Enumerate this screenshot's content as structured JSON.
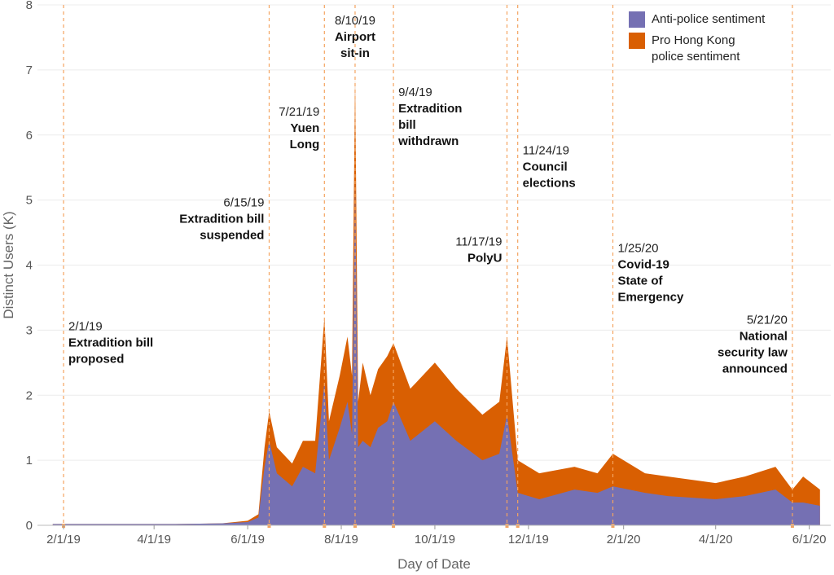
{
  "chart_data": {
    "type": "area",
    "title": "",
    "xlabel": "Day of Date",
    "ylabel": "Distinct Users (K)",
    "ylim": [
      0,
      8
    ],
    "yticks": [
      0,
      1,
      2,
      3,
      4,
      5,
      6,
      7,
      8
    ],
    "xrange": [
      "1/15/19",
      "6/15/20"
    ],
    "xticks": [
      {
        "date": "2/1/19",
        "label": "2/1/19"
      },
      {
        "date": "4/1/19",
        "label": "4/1/19"
      },
      {
        "date": "6/1/19",
        "label": "6/1/19"
      },
      {
        "date": "8/1/19",
        "label": "8/1/19"
      },
      {
        "date": "10/1/19",
        "label": "10/1/19"
      },
      {
        "date": "12/1/19",
        "label": "12/1/19"
      },
      {
        "date": "2/1/20",
        "label": "2/1/20"
      },
      {
        "date": "4/1/20",
        "label": "4/1/20"
      },
      {
        "date": "6/1/20",
        "label": "6/1/20"
      }
    ],
    "stacked": true,
    "series": [
      {
        "name": "Anti-police sentiment",
        "color": "#7570b3",
        "points": [
          [
            "1/25/19",
            0.02
          ],
          [
            "2/15/19",
            0.02
          ],
          [
            "3/15/19",
            0.02
          ],
          [
            "4/15/19",
            0.02
          ],
          [
            "5/15/19",
            0.03
          ],
          [
            "6/1/19",
            0.05
          ],
          [
            "6/8/19",
            0.12
          ],
          [
            "6/12/19",
            0.9
          ],
          [
            "6/15/19",
            1.3
          ],
          [
            "6/20/19",
            0.8
          ],
          [
            "6/30/19",
            0.6
          ],
          [
            "7/7/19",
            0.9
          ],
          [
            "7/15/19",
            0.8
          ],
          [
            "7/21/19",
            2.2
          ],
          [
            "7/24/19",
            1.0
          ],
          [
            "7/31/19",
            1.5
          ],
          [
            "8/5/19",
            1.9
          ],
          [
            "8/8/19",
            1.4
          ],
          [
            "8/10/19",
            5.3
          ],
          [
            "8/12/19",
            1.2
          ],
          [
            "8/15/19",
            1.3
          ],
          [
            "8/20/19",
            1.2
          ],
          [
            "8/25/19",
            1.5
          ],
          [
            "8/31/19",
            1.6
          ],
          [
            "9/4/19",
            1.9
          ],
          [
            "9/15/19",
            1.3
          ],
          [
            "10/1/19",
            1.6
          ],
          [
            "10/15/19",
            1.3
          ],
          [
            "11/1/19",
            1.0
          ],
          [
            "11/12/19",
            1.1
          ],
          [
            "11/17/19",
            1.7
          ],
          [
            "11/24/19",
            0.5
          ],
          [
            "12/8/19",
            0.4
          ],
          [
            "12/31/19",
            0.55
          ],
          [
            "1/15/20",
            0.5
          ],
          [
            "1/25/20",
            0.6
          ],
          [
            "2/15/20",
            0.5
          ],
          [
            "3/1/20",
            0.45
          ],
          [
            "4/1/20",
            0.4
          ],
          [
            "4/20/20",
            0.45
          ],
          [
            "5/10/20",
            0.55
          ],
          [
            "5/21/20",
            0.35
          ],
          [
            "5/28/20",
            0.35
          ],
          [
            "6/8/20",
            0.3
          ]
        ]
      },
      {
        "name": "Pro Hong Kong police sentiment",
        "label_lines": [
          "Pro Hong Kong",
          "police sentiment"
        ],
        "color": "#d95f02",
        "points": [
          [
            "1/25/19",
            0.0
          ],
          [
            "2/15/19",
            0.0
          ],
          [
            "3/15/19",
            0.0
          ],
          [
            "4/15/19",
            0.0
          ],
          [
            "5/15/19",
            0.0
          ],
          [
            "6/1/19",
            0.02
          ],
          [
            "6/8/19",
            0.05
          ],
          [
            "6/12/19",
            0.3
          ],
          [
            "6/15/19",
            0.45
          ],
          [
            "6/20/19",
            0.4
          ],
          [
            "6/30/19",
            0.35
          ],
          [
            "7/7/19",
            0.4
          ],
          [
            "7/15/19",
            0.5
          ],
          [
            "7/21/19",
            1.0
          ],
          [
            "7/24/19",
            0.6
          ],
          [
            "7/31/19",
            0.8
          ],
          [
            "8/5/19",
            1.0
          ],
          [
            "8/8/19",
            0.9
          ],
          [
            "8/10/19",
            1.6
          ],
          [
            "8/12/19",
            0.7
          ],
          [
            "8/15/19",
            1.2
          ],
          [
            "8/20/19",
            0.8
          ],
          [
            "8/25/19",
            0.9
          ],
          [
            "8/31/19",
            1.0
          ],
          [
            "9/4/19",
            0.9
          ],
          [
            "9/15/19",
            0.8
          ],
          [
            "10/1/19",
            0.9
          ],
          [
            "10/15/19",
            0.8
          ],
          [
            "11/1/19",
            0.7
          ],
          [
            "11/12/19",
            0.8
          ],
          [
            "11/17/19",
            1.2
          ],
          [
            "11/24/19",
            0.5
          ],
          [
            "12/8/19",
            0.4
          ],
          [
            "12/31/19",
            0.35
          ],
          [
            "1/15/20",
            0.3
          ],
          [
            "1/25/20",
            0.5
          ],
          [
            "2/15/20",
            0.3
          ],
          [
            "3/1/20",
            0.3
          ],
          [
            "4/1/20",
            0.25
          ],
          [
            "4/20/20",
            0.3
          ],
          [
            "5/10/20",
            0.35
          ],
          [
            "5/21/20",
            0.2
          ],
          [
            "5/28/20",
            0.4
          ],
          [
            "6/8/20",
            0.25
          ]
        ]
      }
    ],
    "events": [
      {
        "date": "2/1/19",
        "date_label": "2/1/19",
        "lines": [
          "Extradition bill",
          "proposed"
        ],
        "side": "right",
        "y": 3.0
      },
      {
        "date": "6/15/19",
        "date_label": "6/15/19",
        "lines": [
          "Extradition bill",
          "suspended"
        ],
        "side": "left",
        "y": 4.9
      },
      {
        "date": "7/21/19",
        "date_label": "7/21/19",
        "lines": [
          "Yuen",
          "Long"
        ],
        "side": "left",
        "y": 6.3
      },
      {
        "date": "8/10/19",
        "date_label": "8/10/19",
        "lines": [
          "Airport",
          "sit-in"
        ],
        "side": "center",
        "y": 7.7
      },
      {
        "date": "9/4/19",
        "date_label": "9/4/19",
        "lines": [
          "Extradition",
          "bill",
          "withdrawn"
        ],
        "side": "right",
        "y": 6.6
      },
      {
        "date": "11/17/19",
        "date_label": "11/17/19",
        "lines": [
          "PolyU"
        ],
        "side": "left",
        "y": 4.3
      },
      {
        "date": "11/24/19",
        "date_label": "11/24/19",
        "lines": [
          "Council",
          "elections"
        ],
        "side": "right",
        "y": 5.7
      },
      {
        "date": "1/25/20",
        "date_label": "1/25/20",
        "lines": [
          "Covid-19",
          "State of",
          "Emergency"
        ],
        "side": "right",
        "y": 4.2
      },
      {
        "date": "5/21/20",
        "date_label": "5/21/20",
        "lines": [
          "National",
          "security law",
          "announced"
        ],
        "side": "left",
        "y": 3.1
      }
    ],
    "legend_position": "top-right"
  }
}
